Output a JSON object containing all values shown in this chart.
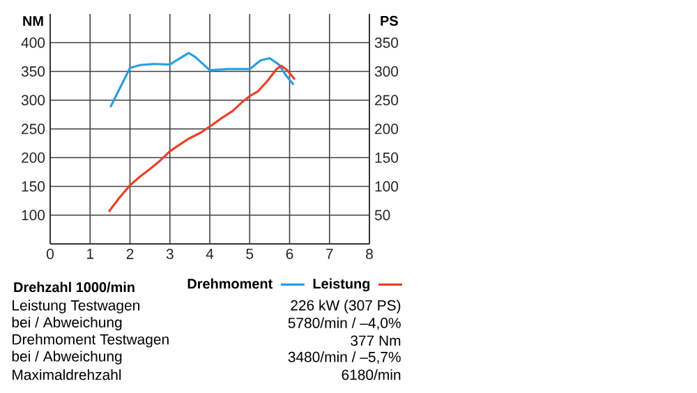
{
  "chart_data": {
    "type": "line",
    "xlabel": "Drehzahl 1000/min",
    "ylabel": "NM",
    "y2label": "PS",
    "xlim": [
      0,
      8
    ],
    "xticks": [
      0,
      1,
      2,
      3,
      4,
      5,
      6,
      7,
      8
    ],
    "ylim": [
      50,
      450
    ],
    "yticks": [
      100,
      150,
      200,
      250,
      300,
      350,
      400
    ],
    "y2lim": [
      0,
      400
    ],
    "y2ticks": [
      50,
      100,
      150,
      200,
      250,
      300,
      350
    ],
    "grid": true,
    "legend": "bottom right",
    "marker": "none",
    "line_style": "solid",
    "series": [
      {
        "name": "Drehmoment",
        "color": "#2a9fe0",
        "x": [
          1.51,
          2.0,
          2.25,
          2.6,
          3.0,
          3.23,
          3.47,
          3.64,
          4.0,
          4.45,
          5.0,
          5.27,
          5.5,
          5.73,
          5.9,
          6.1
        ],
        "values": [
          288,
          356,
          361,
          363,
          362,
          372,
          382,
          375,
          352,
          354,
          354,
          369,
          373,
          362,
          344,
          327
        ]
      },
      {
        "name": "Leistung",
        "color": "#e8412a",
        "axis": "y2",
        "x": [
          1.47,
          1.72,
          2.0,
          2.25,
          2.48,
          2.71,
          3.0,
          3.23,
          3.47,
          3.76,
          4.0,
          4.28,
          4.57,
          4.8,
          5.0,
          5.2,
          5.44,
          5.67,
          5.79,
          5.94,
          6.13
        ],
        "values": [
          56,
          79,
          102,
          117,
          129,
          142,
          161,
          172,
          183,
          193,
          204,
          218,
          231,
          246,
          257,
          265,
          283,
          304,
          310,
          302,
          286
        ]
      }
    ],
    "annotations": [
      "Leistung Testwagen",
      "226 kW (307 PS)",
      "bei / Abweichung",
      "5780/min / –4,0%",
      "Drehmoment Testwagen",
      "377 Nm",
      "bei / Abweichung",
      "3480/min / –5,7%",
      "Maximaldrehzahl",
      "6180/min"
    ]
  }
}
